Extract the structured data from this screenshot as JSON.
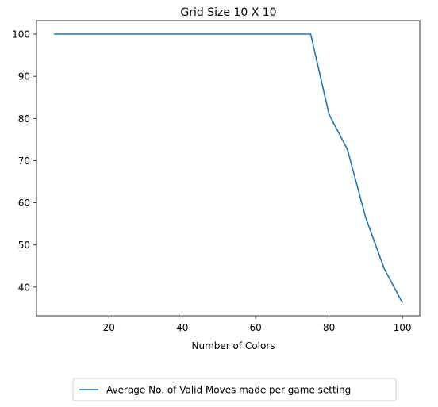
{
  "chart_data": {
    "type": "line",
    "title": "Grid Size 10 X 10",
    "xlabel": "Number of Colors",
    "ylabel": "",
    "xlim": [
      0.25,
      104.75
    ],
    "ylim": [
      33.2,
      103.2
    ],
    "xticks": [
      20,
      40,
      60,
      80,
      100
    ],
    "yticks": [
      40,
      50,
      60,
      70,
      80,
      90,
      100
    ],
    "grid": false,
    "legend_position": "bottom-center",
    "series": [
      {
        "name": "Average No. of Valid Moves made per game setting",
        "color": "#1f77b4",
        "x": [
          5,
          10,
          15,
          20,
          25,
          30,
          35,
          40,
          45,
          50,
          55,
          60,
          65,
          70,
          75,
          80,
          85,
          90,
          95,
          100
        ],
        "y": [
          100,
          100,
          100,
          100,
          100,
          100,
          100,
          100,
          100,
          100,
          100,
          100,
          100,
          100,
          100,
          81,
          72.7,
          56.5,
          44.5,
          36.3
        ]
      }
    ]
  }
}
